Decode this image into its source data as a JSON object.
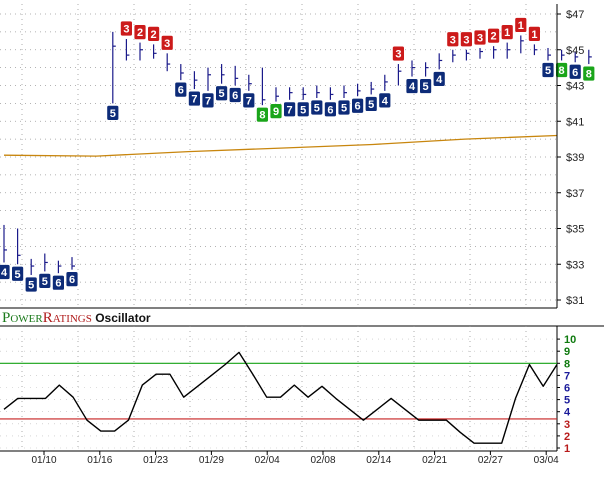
{
  "chart_data": [
    {
      "type": "ohlc",
      "ylim": [
        31,
        47
      ],
      "y_ticks": [
        "$47",
        "$45",
        "$43",
        "$41",
        "$39",
        "$37",
        "$35",
        "$33",
        "$31"
      ],
      "moving_average": [
        39.1,
        39.05,
        39.3,
        39.5,
        39.7,
        40.0,
        40.2
      ],
      "bars": [
        {
          "h": 35.2,
          "l": 33.1,
          "c": 33.8,
          "r": 4
        },
        {
          "h": 35.0,
          "l": 33.0,
          "c": 33.5,
          "r": 5
        },
        {
          "h": 33.3,
          "l": 32.4,
          "c": 32.9,
          "r": 5
        },
        {
          "h": 33.6,
          "l": 32.6,
          "c": 33.1,
          "r": 5
        },
        {
          "h": 33.2,
          "l": 32.5,
          "c": 32.9,
          "r": 6
        },
        {
          "h": 33.4,
          "l": 32.7,
          "c": 32.9,
          "r": 6
        },
        null,
        null,
        {
          "h": 46.0,
          "l": 42.0,
          "c": 45.2,
          "r": 5
        },
        {
          "h": 45.6,
          "l": 44.4,
          "c": 44.7,
          "r": 3
        },
        {
          "h": 45.4,
          "l": 44.4,
          "c": 45.0,
          "r": 2
        },
        {
          "h": 45.3,
          "l": 44.5,
          "c": 44.8,
          "r": 2
        },
        {
          "h": 44.8,
          "l": 43.8,
          "c": 44.2,
          "r": 3
        },
        {
          "h": 44.2,
          "l": 43.3,
          "c": 43.7,
          "r": 6
        },
        {
          "h": 43.8,
          "l": 42.8,
          "c": 43.3,
          "r": 7
        },
        {
          "h": 44.0,
          "l": 42.7,
          "c": 43.6,
          "r": 7
        },
        {
          "h": 44.2,
          "l": 43.1,
          "c": 43.6,
          "r": 5
        },
        {
          "h": 44.1,
          "l": 43.0,
          "c": 43.4,
          "r": 6
        },
        {
          "h": 43.6,
          "l": 42.7,
          "c": 43.1,
          "r": 7
        },
        {
          "h": 44.0,
          "l": 41.9,
          "c": 42.2,
          "r": 8
        },
        {
          "h": 42.9,
          "l": 42.1,
          "c": 42.4,
          "r": 9
        },
        {
          "h": 42.9,
          "l": 42.2,
          "c": 42.6,
          "r": 7
        },
        {
          "h": 42.9,
          "l": 42.2,
          "c": 42.5,
          "r": 5
        },
        {
          "h": 43.0,
          "l": 42.3,
          "c": 42.6,
          "r": 5
        },
        {
          "h": 42.9,
          "l": 42.2,
          "c": 42.5,
          "r": 6
        },
        {
          "h": 43.0,
          "l": 42.3,
          "c": 42.6,
          "r": 5
        },
        {
          "h": 43.1,
          "l": 42.4,
          "c": 42.7,
          "r": 6
        },
        {
          "h": 43.2,
          "l": 42.5,
          "c": 42.8,
          "r": 5
        },
        {
          "h": 43.6,
          "l": 42.7,
          "c": 43.2,
          "r": 4
        },
        {
          "h": 44.2,
          "l": 43.0,
          "c": 43.8,
          "r": 3
        },
        {
          "h": 44.4,
          "l": 43.5,
          "c": 44.0,
          "r": 4
        },
        {
          "h": 44.3,
          "l": 43.5,
          "c": 44.0,
          "r": 5
        },
        {
          "h": 44.8,
          "l": 43.9,
          "c": 44.4,
          "r": 4
        },
        {
          "h": 45.0,
          "l": 44.3,
          "c": 44.7,
          "r": 3
        },
        {
          "h": 45.0,
          "l": 44.4,
          "c": 44.8,
          "r": 3
        },
        {
          "h": 45.1,
          "l": 44.5,
          "c": 44.9,
          "r": 3
        },
        {
          "h": 45.2,
          "l": 44.5,
          "c": 45.0,
          "r": 2
        },
        {
          "h": 45.4,
          "l": 44.5,
          "c": 45.0,
          "r": 1
        },
        {
          "h": 45.8,
          "l": 44.8,
          "c": 45.5,
          "r": 1
        },
        {
          "h": 45.3,
          "l": 44.7,
          "c": 45.0,
          "r": 1
        },
        {
          "h": 45.1,
          "l": 44.4,
          "c": 44.7,
          "r": 5
        },
        {
          "h": 45.0,
          "l": 44.4,
          "c": 44.7,
          "r": 8
        },
        {
          "h": 44.9,
          "l": 44.3,
          "c": 44.6,
          "r": 6
        },
        {
          "h": 45.0,
          "l": 44.2,
          "c": 44.6,
          "r": 8
        }
      ]
    },
    {
      "type": "line",
      "title_parts": [
        "P",
        "OWER",
        "R",
        "ATINGS",
        " Oscillator"
      ],
      "ylim": [
        0.5,
        10.5
      ],
      "y_ticks": [
        "10",
        "9",
        "8",
        "7",
        "6",
        "5",
        "4",
        "3",
        "2",
        "1"
      ],
      "upper_line": 8,
      "lower_line": 3.4,
      "x_tick_labels": [
        "01/10",
        "01/16",
        "01/23",
        "01/29",
        "02/04",
        "02/08",
        "02/14",
        "02/21",
        "02/27",
        "03/04"
      ],
      "values": [
        4.2,
        5.1,
        5.1,
        5.1,
        6.2,
        5.2,
        3.3,
        2.4,
        2.4,
        3.3,
        6.2,
        7.1,
        7.1,
        5.2,
        6.1,
        7.0,
        7.9,
        8.9,
        7.1,
        5.2,
        5.2,
        6.2,
        5.2,
        6.1,
        5.1,
        4.2,
        3.3,
        4.2,
        5.1,
        4.2,
        3.3,
        3.3,
        3.3,
        2.3,
        1.4,
        1.4,
        1.4,
        5.1,
        7.9,
        6.1,
        7.9
      ],
      "colors": {
        "upper": "#16a216",
        "lower": "#c62121",
        "line": "#000000"
      }
    }
  ],
  "colors": {
    "rating_red": "#cc1a1a",
    "rating_blue": "#0d2b78",
    "rating_green": "#1aa51a",
    "bar_stroke": "#1a1a8a",
    "ma_line": "#c8860e",
    "title_green": "#1b7a1b",
    "title_red": "#b01c1c",
    "label_colors": {
      "10": "#0f7a0f",
      "9": "#0f7a0f",
      "8": "#0f7a0f",
      "7": "#1a1a9a",
      "6": "#1a1a9a",
      "5": "#1a1a9a",
      "4": "#1a1a9a",
      "3": "#b81a1a",
      "2": "#b81a1a",
      "1": "#b81a1a"
    }
  }
}
